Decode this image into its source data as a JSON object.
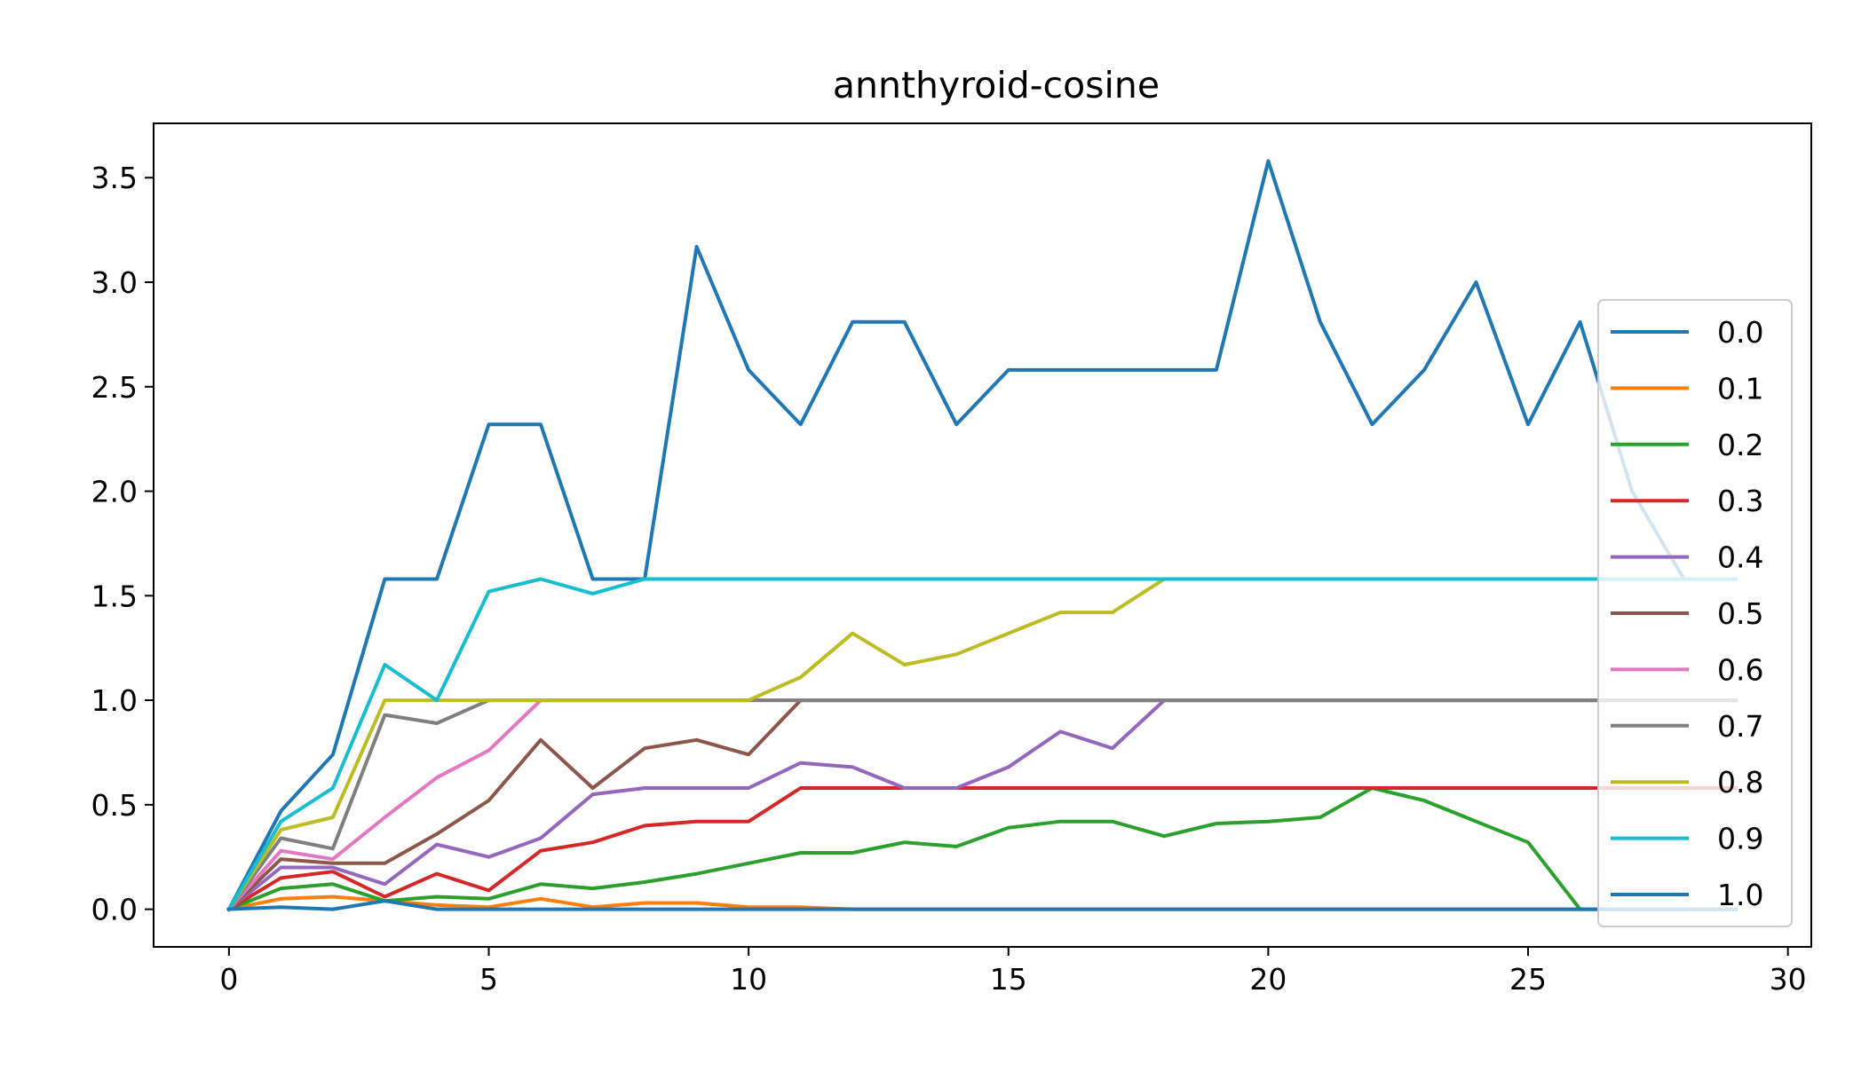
{
  "chart_data": {
    "type": "line",
    "title": "annthyroid-cosine",
    "xlabel": "",
    "ylabel": "",
    "xlim": [
      -1.45,
      30.45
    ],
    "ylim": [
      -0.18,
      3.76
    ],
    "xticks": [
      0,
      5,
      10,
      15,
      20,
      25,
      30
    ],
    "yticks": [
      0.0,
      0.5,
      1.0,
      1.5,
      2.0,
      2.5,
      3.0,
      3.5
    ],
    "xtick_labels": [
      "0",
      "5",
      "10",
      "15",
      "20",
      "25",
      "30"
    ],
    "ytick_labels": [
      "0.0",
      "0.5",
      "1.0",
      "1.5",
      "2.0",
      "2.5",
      "3.0",
      "3.5"
    ],
    "grid": false,
    "legend_position": "right",
    "x": [
      0,
      1,
      2,
      3,
      4,
      5,
      6,
      7,
      8,
      9,
      10,
      11,
      12,
      13,
      14,
      15,
      16,
      17,
      18,
      19,
      20,
      21,
      22,
      23,
      24,
      25,
      26,
      27,
      28,
      29
    ],
    "series": [
      {
        "name": "0.0",
        "color": "#1f77b4",
        "values": [
          0,
          0.47,
          0.74,
          1.58,
          1.58,
          2.32,
          2.32,
          1.58,
          1.58,
          3.17,
          2.58,
          2.32,
          2.81,
          2.81,
          2.32,
          2.58,
          2.58,
          2.58,
          2.58,
          2.58,
          3.58,
          2.81,
          2.32,
          2.58,
          3.0,
          2.32,
          2.81,
          2.0,
          1.58,
          1.58
        ]
      },
      {
        "name": "0.1",
        "color": "#ff7f0e",
        "values": [
          0,
          0.05,
          0.06,
          0.04,
          0.02,
          0.01,
          0.05,
          0.01,
          0.03,
          0.03,
          0.01,
          0.01,
          0,
          0,
          0,
          0,
          0,
          0,
          0,
          0,
          0,
          0,
          0,
          0,
          0,
          0,
          0,
          0,
          0,
          0
        ]
      },
      {
        "name": "0.2",
        "color": "#2ca02c",
        "values": [
          0,
          0.1,
          0.12,
          0.04,
          0.06,
          0.05,
          0.12,
          0.1,
          0.13,
          0.17,
          0.22,
          0.27,
          0.27,
          0.32,
          0.3,
          0.39,
          0.42,
          0.42,
          0.35,
          0.41,
          0.42,
          0.44,
          0.58,
          0.52,
          0.42,
          0.32,
          0,
          0,
          0,
          0
        ]
      },
      {
        "name": "0.3",
        "color": "#d62728",
        "values": [
          0,
          0.15,
          0.18,
          0.06,
          0.17,
          0.09,
          0.28,
          0.32,
          0.4,
          0.42,
          0.42,
          0.58,
          0.58,
          0.58,
          0.58,
          0.58,
          0.58,
          0.58,
          0.58,
          0.58,
          0.58,
          0.58,
          0.58,
          0.58,
          0.58,
          0.58,
          0.58,
          0.58,
          0.58,
          0.58
        ]
      },
      {
        "name": "0.4",
        "color": "#9467bd",
        "values": [
          0,
          0.2,
          0.2,
          0.12,
          0.31,
          0.25,
          0.34,
          0.55,
          0.58,
          0.58,
          0.58,
          0.7,
          0.68,
          0.58,
          0.58,
          0.68,
          0.85,
          0.77,
          1.0,
          1.0,
          1.0,
          1.0,
          1.0,
          1.0,
          1.0,
          1.0,
          1.0,
          1.0,
          1.0,
          1.0
        ]
      },
      {
        "name": "0.5",
        "color": "#8c564b",
        "values": [
          0,
          0.24,
          0.22,
          0.22,
          0.36,
          0.52,
          0.81,
          0.58,
          0.77,
          0.81,
          0.74,
          1.0,
          1.0,
          1.0,
          1.0,
          1.0,
          1.0,
          1.0,
          1.0,
          1.0,
          1.0,
          1.0,
          1.0,
          1.0,
          1.0,
          1.0,
          1.0,
          1.0,
          1.0,
          1.0
        ]
      },
      {
        "name": "0.6",
        "color": "#e377c2",
        "values": [
          0,
          0.28,
          0.24,
          0.44,
          0.63,
          0.76,
          1.0,
          1.0,
          1.0,
          1.0,
          1.0,
          1.0,
          1.0,
          1.0,
          1.0,
          1.0,
          1.0,
          1.0,
          1.0,
          1.0,
          1.0,
          1.0,
          1.0,
          1.0,
          1.0,
          1.0,
          1.0,
          1.0,
          1.0,
          1.0
        ]
      },
      {
        "name": "0.7",
        "color": "#7f7f7f",
        "values": [
          0,
          0.34,
          0.29,
          0.93,
          0.89,
          1.0,
          1.0,
          1.0,
          1.0,
          1.0,
          1.0,
          1.0,
          1.0,
          1.0,
          1.0,
          1.0,
          1.0,
          1.0,
          1.0,
          1.0,
          1.0,
          1.0,
          1.0,
          1.0,
          1.0,
          1.0,
          1.0,
          1.0,
          1.0,
          1.0
        ]
      },
      {
        "name": "0.8",
        "color": "#bcbd22",
        "values": [
          0,
          0.38,
          0.44,
          1.0,
          1.0,
          1.0,
          1.0,
          1.0,
          1.0,
          1.0,
          1.0,
          1.11,
          1.32,
          1.17,
          1.22,
          1.32,
          1.42,
          1.42,
          1.58,
          1.58,
          1.58,
          1.58,
          1.58,
          1.58,
          1.58,
          1.58,
          1.58,
          1.58,
          1.58,
          1.58
        ]
      },
      {
        "name": "0.9",
        "color": "#17becf",
        "values": [
          0,
          0.42,
          0.58,
          1.17,
          1.0,
          1.52,
          1.58,
          1.51,
          1.58,
          1.58,
          1.58,
          1.58,
          1.58,
          1.58,
          1.58,
          1.58,
          1.58,
          1.58,
          1.58,
          1.58,
          1.58,
          1.58,
          1.58,
          1.58,
          1.58,
          1.58,
          1.58,
          1.58,
          1.58,
          1.58
        ]
      },
      {
        "name": "1.0",
        "color": "#1f77b4",
        "values": [
          0,
          0.01,
          0,
          0.04,
          0,
          0,
          0,
          0,
          0,
          0,
          0,
          0,
          0,
          0,
          0,
          0,
          0,
          0,
          0,
          0,
          0,
          0,
          0,
          0,
          0,
          0,
          0,
          0,
          0,
          0
        ]
      }
    ]
  }
}
